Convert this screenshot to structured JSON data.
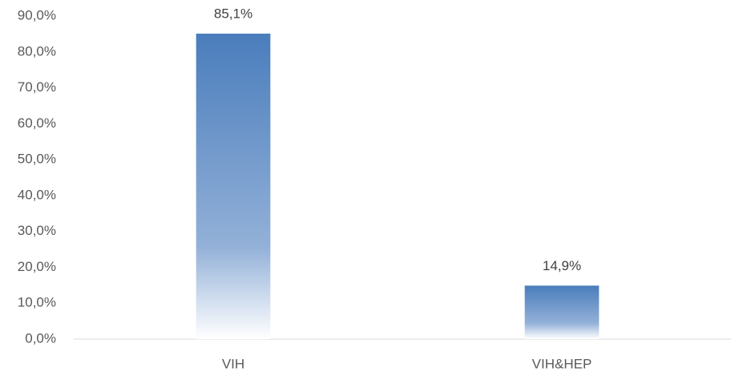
{
  "chart_data": {
    "type": "bar",
    "categories": [
      "VIH",
      "VIH&HEP"
    ],
    "values": [
      85.1,
      14.9
    ],
    "value_labels": [
      "85,1%",
      "14,9%"
    ],
    "color": "#4f81bd",
    "ylim": [
      0,
      90
    ],
    "yticks": [
      {
        "value": 0,
        "label": "0,0%"
      },
      {
        "value": 10,
        "label": "10,0%"
      },
      {
        "value": 20,
        "label": "20,0%"
      },
      {
        "value": 30,
        "label": "30,0%"
      },
      {
        "value": 40,
        "label": "40,0%"
      },
      {
        "value": 50,
        "label": "50,0%"
      },
      {
        "value": 60,
        "label": "60,0%"
      },
      {
        "value": 70,
        "label": "70,0%"
      },
      {
        "value": 80,
        "label": "80,0%"
      },
      {
        "value": 90,
        "label": "90,0%"
      }
    ],
    "grid": false
  }
}
